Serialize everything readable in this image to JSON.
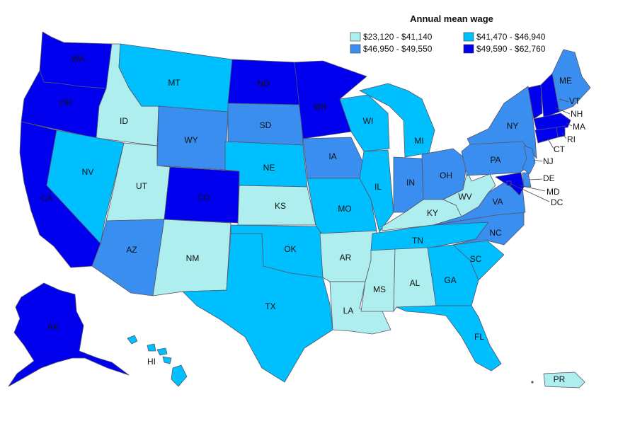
{
  "legend": {
    "title": "Annual mean wage",
    "bins": [
      {
        "label": "$23,120 - $41,140",
        "color": "#aeeeee"
      },
      {
        "label": "$41,470 - $46,940",
        "color": "#00bfff"
      },
      {
        "label": "$46,950 - $49,550",
        "color": "#3a8eef"
      },
      {
        "label": "$49,590 - $62,760",
        "color": "#0000ee"
      }
    ]
  },
  "states": [
    {
      "code": "WA",
      "bin": 3
    },
    {
      "code": "OR",
      "bin": 3
    },
    {
      "code": "CA",
      "bin": 3
    },
    {
      "code": "ID",
      "bin": 0
    },
    {
      "code": "NV",
      "bin": 1
    },
    {
      "code": "UT",
      "bin": 0
    },
    {
      "code": "AZ",
      "bin": 2
    },
    {
      "code": "MT",
      "bin": 1
    },
    {
      "code": "WY",
      "bin": 2
    },
    {
      "code": "CO",
      "bin": 3
    },
    {
      "code": "NM",
      "bin": 0
    },
    {
      "code": "ND",
      "bin": 3
    },
    {
      "code": "SD",
      "bin": 2
    },
    {
      "code": "NE",
      "bin": 1
    },
    {
      "code": "KS",
      "bin": 0
    },
    {
      "code": "OK",
      "bin": 1
    },
    {
      "code": "TX",
      "bin": 1
    },
    {
      "code": "MN",
      "bin": 3
    },
    {
      "code": "IA",
      "bin": 2
    },
    {
      "code": "MO",
      "bin": 1
    },
    {
      "code": "AR",
      "bin": 0
    },
    {
      "code": "LA",
      "bin": 0
    },
    {
      "code": "WI",
      "bin": 1
    },
    {
      "code": "IL",
      "bin": 1
    },
    {
      "code": "MI",
      "bin": 1
    },
    {
      "code": "IN",
      "bin": 2
    },
    {
      "code": "OH",
      "bin": 2
    },
    {
      "code": "KY",
      "bin": 0
    },
    {
      "code": "TN",
      "bin": 1
    },
    {
      "code": "MS",
      "bin": 0
    },
    {
      "code": "AL",
      "bin": 0
    },
    {
      "code": "GA",
      "bin": 1
    },
    {
      "code": "FL",
      "bin": 1
    },
    {
      "code": "SC",
      "bin": 1
    },
    {
      "code": "NC",
      "bin": 2
    },
    {
      "code": "VA",
      "bin": 2
    },
    {
      "code": "WV",
      "bin": 0
    },
    {
      "code": "PA",
      "bin": 2
    },
    {
      "code": "NY",
      "bin": 2
    },
    {
      "code": "ME",
      "bin": 2
    },
    {
      "code": "VT",
      "bin": 3
    },
    {
      "code": "NH",
      "bin": 3
    },
    {
      "code": "MA",
      "bin": 3
    },
    {
      "code": "RI",
      "bin": 3
    },
    {
      "code": "CT",
      "bin": 3
    },
    {
      "code": "NJ",
      "bin": 2
    },
    {
      "code": "DE",
      "bin": 2
    },
    {
      "code": "MD",
      "bin": 3
    },
    {
      "code": "DC",
      "bin": 3
    },
    {
      "code": "AK",
      "bin": 3
    },
    {
      "code": "HI",
      "bin": 1
    },
    {
      "code": "PR",
      "bin": 0
    }
  ]
}
